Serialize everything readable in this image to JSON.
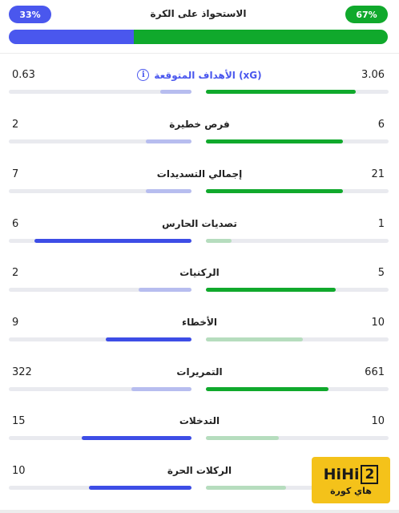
{
  "possession": {
    "title": "الاستحواذ على الكرة",
    "left_label": "33%",
    "right_label": "67%",
    "left_value": 33,
    "right_value": 67
  },
  "stats": [
    {
      "label": "الأهداف المتوقعة (xG)",
      "left": "0.63",
      "right": "3.06",
      "left_fill": 0.17,
      "right_fill": 0.82,
      "leader": "right",
      "xg": true
    },
    {
      "label": "فرص خطيرة",
      "left": "2",
      "right": "6",
      "left_fill": 0.25,
      "right_fill": 0.75,
      "leader": "right"
    },
    {
      "label": "إجمالي التسديدات",
      "left": "7",
      "right": "21",
      "left_fill": 0.25,
      "right_fill": 0.75,
      "leader": "right"
    },
    {
      "label": "تصديات الحارس",
      "left": "6",
      "right": "1",
      "left_fill": 0.86,
      "right_fill": 0.14,
      "leader": "left"
    },
    {
      "label": "الركنيات",
      "left": "2",
      "right": "5",
      "left_fill": 0.29,
      "right_fill": 0.71,
      "leader": "right"
    },
    {
      "label": "الأخطاء",
      "left": "9",
      "right": "10",
      "left_fill": 0.47,
      "right_fill": 0.53,
      "leader": "left"
    },
    {
      "label": "التمريرات",
      "left": "322",
      "right": "661",
      "left_fill": 0.33,
      "right_fill": 0.67,
      "leader": "right"
    },
    {
      "label": "التدخلات",
      "left": "15",
      "right": "10",
      "left_fill": 0.6,
      "right_fill": 0.4,
      "leader": "left"
    },
    {
      "label": "الركلات الحرة",
      "left": "10",
      "right": "",
      "left_fill": 0.56,
      "right_fill": 0.44,
      "leader": "left"
    }
  ],
  "info_icon": "info-icon",
  "watermark": {
    "brand_left": "HiHi",
    "brand_right": "2",
    "subtitle": "هاي كورة"
  },
  "colors": {
    "team_left": "#4a57ee",
    "team_right": "#10a92c"
  }
}
